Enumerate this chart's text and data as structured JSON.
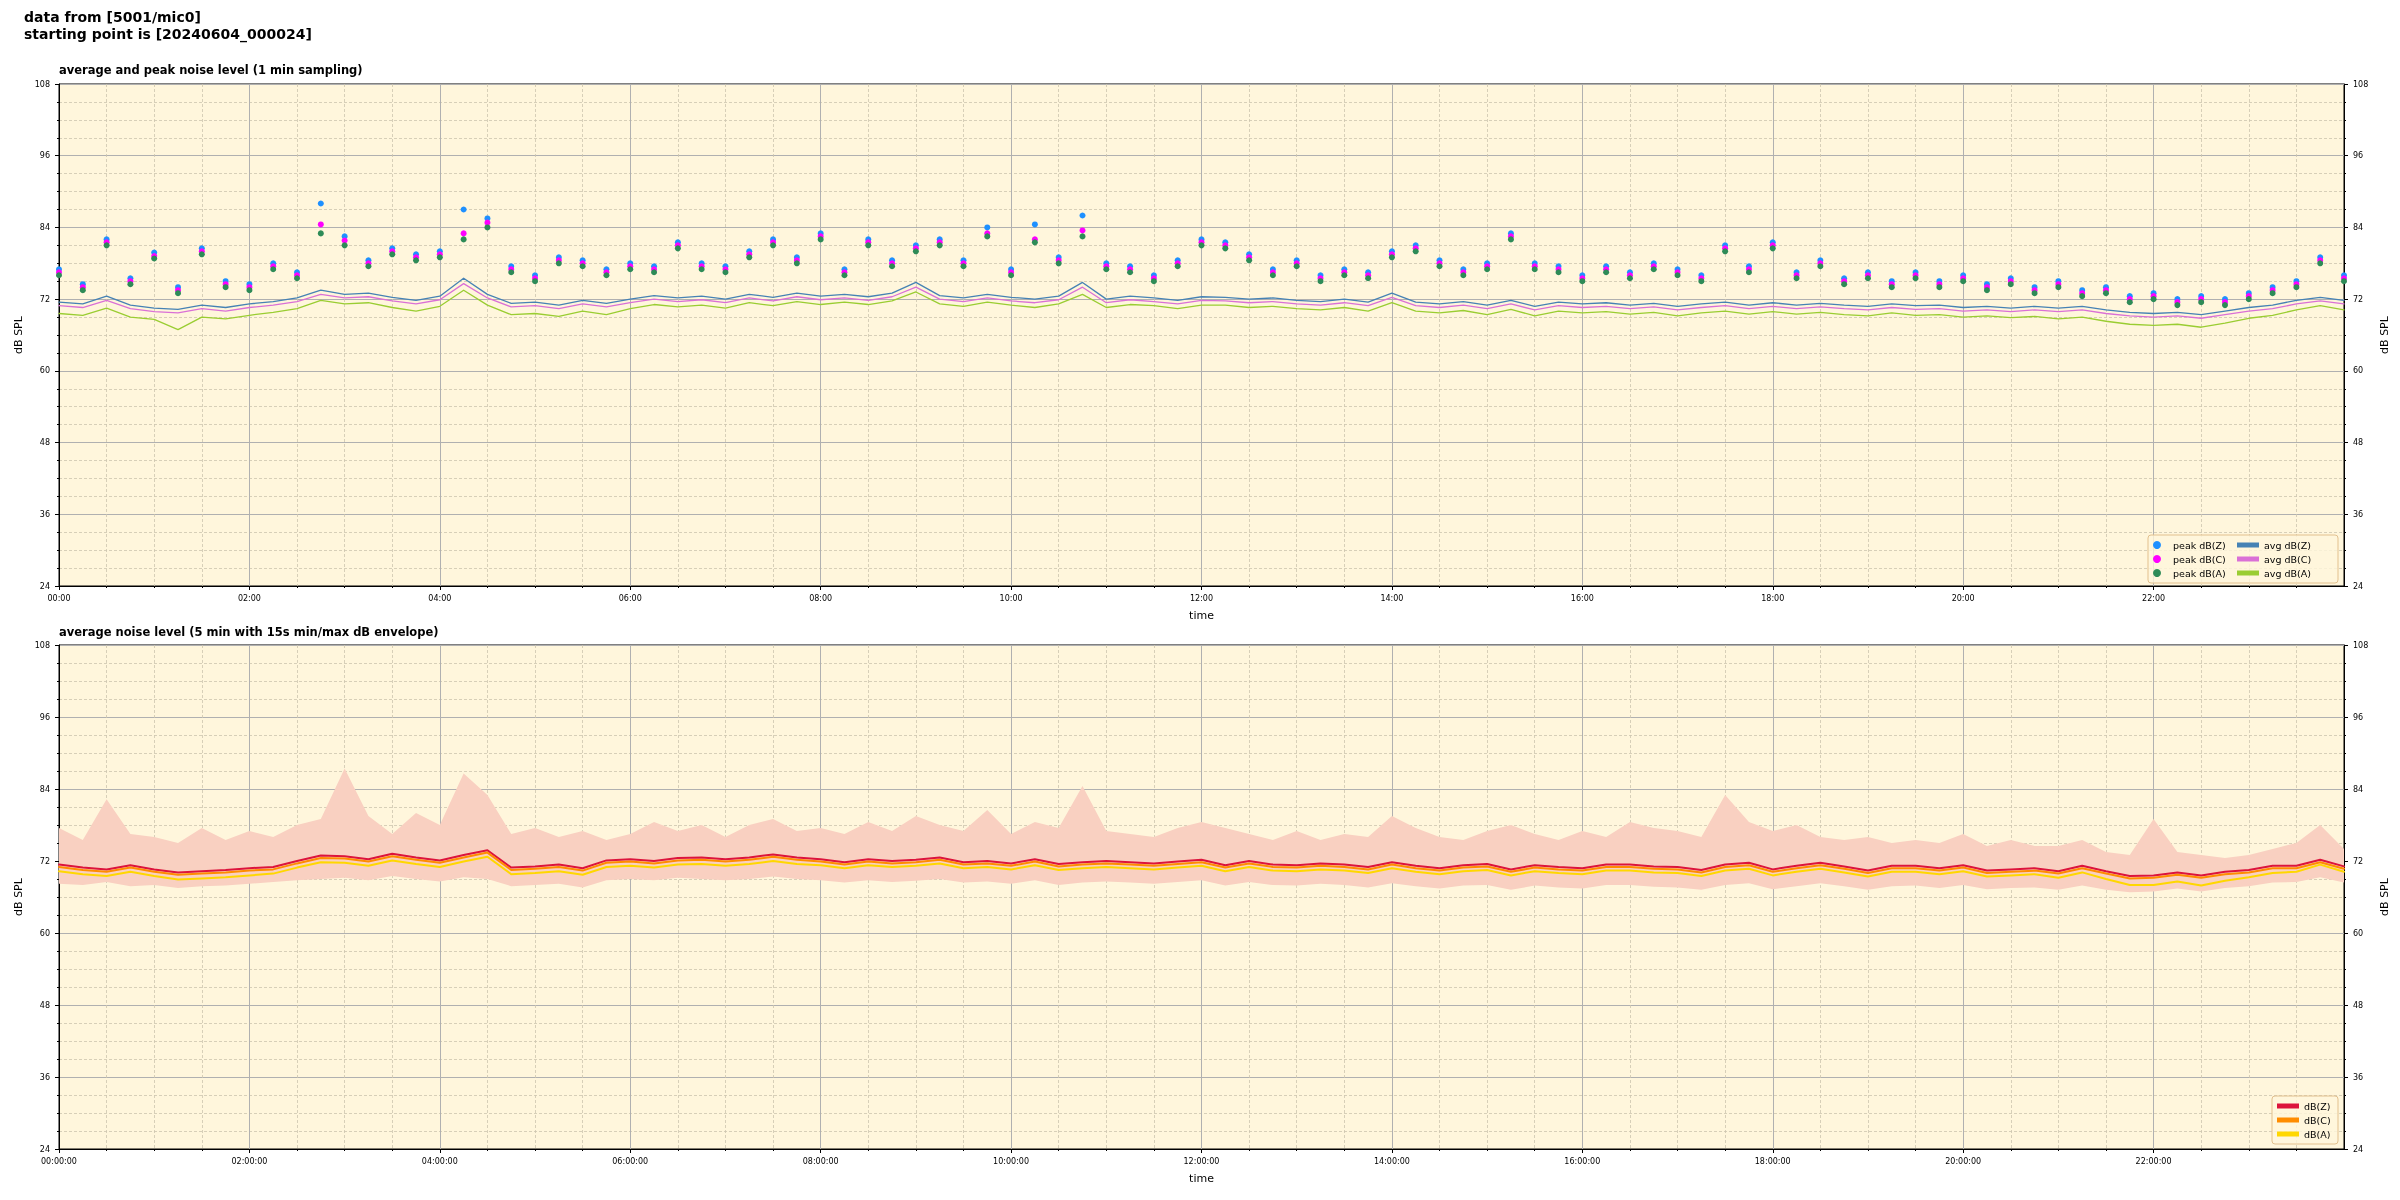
{
  "chart_data": [
    {
      "type": "line",
      "title": "average and peak noise level (1 min sampling)",
      "annotations": [
        "data from [5001/mic0]",
        "starting point is [20240604_000024]"
      ],
      "xlabel": "time",
      "ylabel": "dB SPL",
      "y2label": "dB SPL",
      "x": [
        0,
        0.25,
        0.5,
        0.75,
        1,
        1.25,
        1.5,
        1.75,
        2,
        2.25,
        2.5,
        2.75,
        3,
        3.25,
        3.5,
        3.75,
        4,
        4.25,
        4.5,
        4.75,
        5,
        5.25,
        5.5,
        5.75,
        6,
        6.25,
        6.5,
        6.75,
        7,
        7.25,
        7.5,
        7.75,
        8,
        8.25,
        8.5,
        8.75,
        9,
        9.25,
        9.5,
        9.75,
        10,
        10.25,
        10.5,
        10.75,
        11,
        11.25,
        11.5,
        11.75,
        12,
        12.25,
        12.5,
        12.75,
        13,
        13.25,
        13.5,
        13.75,
        14,
        14.25,
        14.5,
        14.75,
        15,
        15.25,
        15.5,
        15.75,
        16,
        16.25,
        16.5,
        16.75,
        17,
        17.25,
        17.5,
        17.75,
        18,
        18.25,
        18.5,
        18.75,
        19,
        19.25,
        19.5,
        19.75,
        20,
        20.25,
        20.5,
        20.75,
        21,
        21.25,
        21.5,
        21.75,
        22,
        22.25,
        22.5,
        22.75,
        23,
        23.25,
        23.5,
        23.75,
        24
      ],
      "series": [
        {
          "name": "peak dB(Z)",
          "type": "scatter",
          "marker": "circle",
          "color": "#1e90ff",
          "values": [
            77.0,
            74.5,
            82.0,
            75.5,
            79.8,
            74.0,
            80.5,
            75.0,
            74.5,
            78.0,
            76.5,
            88.0,
            82.5,
            78.5,
            80.5,
            79.5,
            80.0,
            87.0,
            85.5,
            77.5,
            76.0,
            79.0,
            78.5,
            77.0,
            78.0,
            77.5,
            81.5,
            78.0,
            77.5,
            80.0,
            82.0,
            79.0,
            83.0,
            77.0,
            82.0,
            78.5,
            81.0,
            82.0,
            78.5,
            84.0,
            77.0,
            84.5,
            79.0,
            86.0,
            78.0,
            77.5,
            76.0,
            78.5,
            82.0,
            81.5,
            79.5,
            77.0,
            78.5,
            76.0,
            77.0,
            76.5,
            80.0,
            81.0,
            78.5,
            77.0,
            78.0,
            83.0,
            78.0,
            77.5,
            76.0,
            77.5,
            76.5,
            78.0,
            77.0,
            76.0,
            81.0,
            77.5,
            81.5,
            76.5,
            78.5,
            75.5,
            76.5,
            75.0,
            76.5,
            75.0,
            76.0,
            74.5,
            75.5,
            74.0,
            75.0,
            73.5,
            74.0,
            72.5,
            73.0,
            72.0,
            72.5,
            72.0,
            73.0,
            74.0,
            75.0,
            79.0,
            76.0
          ]
        },
        {
          "name": "peak dB(C)",
          "type": "scatter",
          "marker": "circle",
          "color": "#ff00ff",
          "values": [
            76.5,
            74.0,
            81.5,
            75.0,
            79.2,
            73.5,
            80.0,
            74.5,
            74.0,
            77.5,
            76.0,
            84.5,
            81.8,
            78.0,
            80.0,
            79.0,
            79.5,
            83.0,
            84.8,
            77.0,
            75.5,
            78.5,
            78.0,
            76.5,
            77.5,
            77.0,
            81.0,
            77.5,
            77.0,
            79.5,
            81.5,
            78.5,
            82.5,
            76.5,
            81.5,
            78.0,
            80.5,
            81.5,
            78.0,
            83.0,
            76.5,
            82.0,
            78.5,
            83.5,
            77.5,
            77.0,
            75.5,
            78.0,
            81.5,
            81.0,
            79.0,
            76.5,
            78.0,
            75.5,
            76.5,
            76.0,
            79.5,
            80.5,
            78.0,
            76.5,
            77.5,
            82.5,
            77.5,
            77.0,
            75.5,
            77.0,
            76.0,
            77.5,
            76.5,
            75.5,
            80.5,
            77.0,
            81.0,
            76.0,
            78.0,
            75.0,
            76.0,
            74.5,
            76.0,
            74.5,
            75.5,
            74.0,
            75.0,
            73.5,
            74.5,
            73.0,
            73.5,
            72.0,
            72.5,
            71.5,
            72.0,
            71.5,
            72.5,
            73.5,
            74.5,
            78.5,
            75.5
          ]
        },
        {
          "name": "peak dB(A)",
          "type": "scatter",
          "marker": "circle",
          "color": "#2e8b57",
          "values": [
            76.0,
            73.5,
            81.0,
            74.5,
            78.8,
            73.0,
            79.5,
            74.0,
            73.5,
            77.0,
            75.5,
            83.0,
            81.0,
            77.5,
            79.5,
            78.5,
            79.0,
            82.0,
            84.0,
            76.5,
            75.0,
            78.0,
            77.5,
            76.0,
            77.0,
            76.5,
            80.5,
            77.0,
            76.5,
            79.0,
            81.0,
            78.0,
            82.0,
            76.0,
            81.0,
            77.5,
            80.0,
            81.0,
            77.5,
            82.5,
            76.0,
            81.5,
            78.0,
            82.5,
            77.0,
            76.5,
            75.0,
            77.5,
            81.0,
            80.5,
            78.5,
            76.0,
            77.5,
            75.0,
            76.0,
            75.5,
            79.0,
            80.0,
            77.5,
            76.0,
            77.0,
            82.0,
            77.0,
            76.5,
            75.0,
            76.5,
            75.5,
            77.0,
            76.0,
            75.0,
            80.0,
            76.5,
            80.5,
            75.5,
            77.5,
            74.5,
            75.5,
            74.0,
            75.5,
            74.0,
            75.0,
            73.5,
            74.5,
            73.0,
            74.0,
            72.5,
            73.0,
            71.5,
            72.0,
            71.0,
            71.5,
            71.0,
            72.0,
            73.0,
            74.0,
            78.0,
            75.0
          ]
        },
        {
          "name": "avg dB(Z)",
          "color": "#4682b4",
          "values": [
            71.5,
            71.2,
            72.5,
            71.0,
            70.5,
            70.3,
            71.0,
            70.6,
            71.2,
            71.6,
            72.2,
            73.5,
            72.8,
            73.0,
            72.3,
            71.8,
            72.5,
            75.5,
            72.8,
            71.3,
            71.5,
            71.0,
            71.8,
            71.3,
            72.0,
            72.6,
            72.2,
            72.5,
            72.0,
            72.8,
            72.3,
            73.0,
            72.5,
            72.8,
            72.4,
            73.0,
            74.8,
            72.6,
            72.2,
            72.8,
            72.3,
            72.0,
            72.5,
            74.8,
            72.0,
            72.5,
            72.2,
            71.8,
            72.4,
            72.3,
            72.0,
            72.2,
            71.8,
            71.6,
            72.0,
            71.5,
            73.0,
            71.5,
            71.2,
            71.6,
            71.0,
            71.8,
            70.8,
            71.5,
            71.2,
            71.4,
            71.0,
            71.3,
            70.8,
            71.2,
            71.5,
            71.0,
            71.4,
            71.0,
            71.3,
            71.0,
            70.8,
            71.2,
            70.9,
            71.0,
            70.6,
            70.8,
            70.5,
            70.8,
            70.5,
            70.8,
            70.2,
            69.8,
            69.6,
            69.8,
            69.4,
            70.0,
            70.6,
            71.0,
            71.8,
            72.3,
            71.8
          ]
        },
        {
          "name": "avg dB(C)",
          "color": "#da70d6",
          "values": [
            70.9,
            70.6,
            71.8,
            70.4,
            69.9,
            69.7,
            70.4,
            70.0,
            70.6,
            71.0,
            71.6,
            72.8,
            72.2,
            72.4,
            71.7,
            71.2,
            71.9,
            74.6,
            72.2,
            70.7,
            70.9,
            70.4,
            71.2,
            70.7,
            71.4,
            72.0,
            71.6,
            71.9,
            71.4,
            72.2,
            71.7,
            72.4,
            71.9,
            72.2,
            71.8,
            72.4,
            74.0,
            72.0,
            71.6,
            72.2,
            71.7,
            71.4,
            71.9,
            74.0,
            71.4,
            71.9,
            71.6,
            71.2,
            71.8,
            71.7,
            71.4,
            71.6,
            71.2,
            71.0,
            71.4,
            70.9,
            72.3,
            70.9,
            70.6,
            71.0,
            70.4,
            71.2,
            70.2,
            70.9,
            70.6,
            70.8,
            70.4,
            70.7,
            70.2,
            70.6,
            70.9,
            70.4,
            70.8,
            70.4,
            70.7,
            70.4,
            70.2,
            70.6,
            70.3,
            70.4,
            70.0,
            70.2,
            69.9,
            70.2,
            69.9,
            70.2,
            69.6,
            69.2,
            69.0,
            69.2,
            68.8,
            69.4,
            70.0,
            70.4,
            71.2,
            71.7,
            71.2
          ]
        },
        {
          "name": "avg dB(A)",
          "color": "#9acd32",
          "values": [
            69.6,
            69.3,
            70.5,
            69.0,
            68.6,
            66.9,
            69.0,
            68.7,
            69.3,
            69.8,
            70.4,
            71.8,
            71.2,
            71.4,
            70.6,
            70.0,
            70.8,
            73.5,
            71.0,
            69.4,
            69.6,
            69.1,
            70.0,
            69.4,
            70.4,
            71.1,
            70.7,
            71.0,
            70.5,
            71.4,
            70.9,
            71.6,
            71.1,
            71.5,
            71.1,
            71.7,
            73.2,
            71.2,
            70.8,
            71.5,
            71.0,
            70.6,
            71.2,
            72.8,
            70.6,
            71.1,
            70.9,
            70.4,
            71.0,
            71.0,
            70.6,
            70.8,
            70.4,
            70.2,
            70.6,
            70.0,
            71.4,
            70.0,
            69.7,
            70.1,
            69.4,
            70.3,
            69.2,
            70.0,
            69.7,
            69.9,
            69.5,
            69.8,
            69.2,
            69.7,
            70.0,
            69.5,
            69.9,
            69.5,
            69.8,
            69.4,
            69.2,
            69.7,
            69.3,
            69.4,
            69.0,
            69.2,
            68.9,
            69.1,
            68.7,
            69.0,
            68.3,
            67.8,
            67.6,
            67.8,
            67.3,
            68.0,
            68.8,
            69.3,
            70.2,
            70.9,
            70.2
          ]
        }
      ],
      "xlim": [
        0,
        24
      ],
      "xticks": [
        {
          "value": 0,
          "label": "00:00"
        },
        {
          "value": 0.5,
          "label": null
        },
        {
          "value": 1,
          "label": null
        },
        {
          "value": 1.5,
          "label": null
        },
        {
          "value": 2,
          "label": "02:00"
        },
        {
          "value": 2.5,
          "label": null
        },
        {
          "value": 3,
          "label": null
        },
        {
          "value": 3.5,
          "label": null
        },
        {
          "value": 4,
          "label": "04:00"
        },
        {
          "value": 4.5,
          "label": null
        },
        {
          "value": 5,
          "label": null
        },
        {
          "value": 5.5,
          "label": null
        },
        {
          "value": 6,
          "label": "06:00"
        },
        {
          "value": 6.5,
          "label": null
        },
        {
          "value": 7,
          "label": null
        },
        {
          "value": 7.5,
          "label": null
        },
        {
          "value": 8,
          "label": "08:00"
        },
        {
          "value": 8.5,
          "label": null
        },
        {
          "value": 9,
          "label": null
        },
        {
          "value": 9.5,
          "label": null
        },
        {
          "value": 10,
          "label": "10:00"
        },
        {
          "value": 10.5,
          "label": null
        },
        {
          "value": 11,
          "label": null
        },
        {
          "value": 11.5,
          "label": null
        },
        {
          "value": 12,
          "label": "12:00"
        },
        {
          "value": 12.5,
          "label": null
        },
        {
          "value": 13,
          "label": null
        },
        {
          "value": 13.5,
          "label": null
        },
        {
          "value": 14,
          "label": "14:00"
        },
        {
          "value": 14.5,
          "label": null
        },
        {
          "value": 15,
          "label": null
        },
        {
          "value": 15.5,
          "label": null
        },
        {
          "value": 16,
          "label": "16:00"
        },
        {
          "value": 16.5,
          "label": null
        },
        {
          "value": 17,
          "label": null
        },
        {
          "value": 17.5,
          "label": null
        },
        {
          "value": 18,
          "label": "18:00"
        },
        {
          "value": 18.5,
          "label": null
        },
        {
          "value": 19,
          "label": null
        },
        {
          "value": 19.5,
          "label": null
        },
        {
          "value": 20,
          "label": "20:00"
        },
        {
          "value": 20.5,
          "label": null
        },
        {
          "value": 21,
          "label": null
        },
        {
          "value": 21.5,
          "label": null
        },
        {
          "value": 22,
          "label": "22:00"
        },
        {
          "value": 22.5,
          "label": null
        },
        {
          "value": 23,
          "label": null
        },
        {
          "value": 23.5,
          "label": null
        }
      ],
      "ylim": [
        24,
        108
      ],
      "yticks": [
        24,
        {
          "value": 27,
          "label": null
        },
        {
          "value": 30,
          "label": null
        },
        {
          "value": 33,
          "label": null
        },
        36,
        {
          "value": 39,
          "label": null
        },
        {
          "value": 42,
          "label": null
        },
        {
          "value": 45,
          "label": null
        },
        48,
        {
          "value": 51,
          "label": null
        },
        {
          "value": 54,
          "label": null
        },
        {
          "value": 57,
          "label": null
        },
        60,
        {
          "value": 63,
          "label": null
        },
        {
          "value": 66,
          "label": null
        },
        {
          "value": 69,
          "label": null
        },
        72,
        {
          "value": 75,
          "label": null
        },
        {
          "value": 78,
          "label": null
        },
        {
          "value": 81,
          "label": null
        },
        84,
        {
          "value": 87,
          "label": null
        },
        {
          "value": 90,
          "label": null
        },
        {
          "value": 93,
          "label": null
        },
        96,
        {
          "value": 99,
          "label": null
        },
        {
          "value": 102,
          "label": null
        },
        {
          "value": 105,
          "label": null
        },
        108
      ],
      "y2lim": [
        24,
        108
      ],
      "y2ticks": [
        24,
        {
          "value": 27,
          "label": null
        },
        {
          "value": 30,
          "label": null
        },
        {
          "value": 33,
          "label": null
        },
        36,
        {
          "value": 39,
          "label": null
        },
        {
          "value": 42,
          "label": null
        },
        {
          "value": 45,
          "label": null
        },
        48,
        {
          "value": 51,
          "label": null
        },
        {
          "value": 54,
          "label": null
        },
        {
          "value": 57,
          "label": null
        },
        60,
        {
          "value": 63,
          "label": null
        },
        {
          "value": 66,
          "label": null
        },
        {
          "value": 69,
          "label": null
        },
        72,
        {
          "value": 75,
          "label": null
        },
        {
          "value": 78,
          "label": null
        },
        {
          "value": 81,
          "label": null
        },
        84,
        {
          "value": 87,
          "label": null
        },
        {
          "value": 90,
          "label": null
        },
        {
          "value": 93,
          "label": null
        },
        96,
        {
          "value": 99,
          "label": null
        },
        {
          "value": 102,
          "label": null
        },
        {
          "value": 105,
          "label": null
        },
        108
      ],
      "grid": true,
      "legend": "bottom right"
    },
    {
      "type": "line",
      "title": "average noise level (5 min with 15s min/max dB envelope)",
      "xlabel": "time",
      "ylabel": "dB SPL",
      "y2label": "dB SPL",
      "x": [
        0,
        0.25,
        0.5,
        0.75,
        1,
        1.25,
        1.5,
        1.75,
        2,
        2.25,
        2.5,
        2.75,
        3,
        3.25,
        3.5,
        3.75,
        4,
        4.25,
        4.5,
        4.75,
        5,
        5.25,
        5.5,
        5.75,
        6,
        6.25,
        6.5,
        6.75,
        7,
        7.25,
        7.5,
        7.75,
        8,
        8.25,
        8.5,
        8.75,
        9,
        9.25,
        9.5,
        9.75,
        10,
        10.25,
        10.5,
        10.75,
        11,
        11.25,
        11.5,
        11.75,
        12,
        12.25,
        12.5,
        12.75,
        13,
        13.25,
        13.5,
        13.75,
        14,
        14.25,
        14.5,
        14.75,
        15,
        15.25,
        15.5,
        15.75,
        16,
        16.25,
        16.5,
        16.75,
        17,
        17.25,
        17.5,
        17.75,
        18,
        18.25,
        18.5,
        18.75,
        19,
        19.25,
        19.5,
        19.75,
        20,
        20.25,
        20.5,
        20.75,
        21,
        21.25,
        21.5,
        21.75,
        22,
        22.25,
        22.5,
        22.75,
        23,
        23.25,
        23.5,
        23.75,
        24
      ],
      "series": [
        {
          "name": "dB(Z)",
          "color": "#dc143c",
          "values": [
            71.4,
            70.9,
            70.6,
            71.3,
            70.6,
            70.1,
            70.3,
            70.5,
            70.8,
            71.0,
            72.0,
            72.9,
            72.8,
            72.3,
            73.2,
            72.6,
            72.1,
            73.0,
            73.8,
            70.9,
            71.1,
            71.4,
            70.8,
            72.1,
            72.3,
            72.0,
            72.5,
            72.6,
            72.3,
            72.6,
            73.1,
            72.6,
            72.3,
            71.8,
            72.3,
            72.0,
            72.2,
            72.6,
            71.8,
            72.0,
            71.6,
            72.3,
            71.5,
            71.8,
            72.0,
            71.8,
            71.6,
            71.9,
            72.2,
            71.3,
            72.0,
            71.4,
            71.3,
            71.6,
            71.4,
            71.0,
            71.8,
            71.2,
            70.8,
            71.3,
            71.5,
            70.6,
            71.3,
            71.0,
            70.8,
            71.4,
            71.4,
            71.1,
            71.0,
            70.5,
            71.4,
            71.7,
            70.6,
            71.2,
            71.7,
            71.1,
            70.4,
            71.2,
            71.2,
            70.8,
            71.3,
            70.4,
            70.6,
            70.8,
            70.3,
            71.2,
            70.3,
            69.5,
            69.6,
            70.1,
            69.6,
            70.2,
            70.5,
            71.2,
            71.2,
            72.2,
            71.1
          ],
          "lower": [
            68.2,
            68.0,
            68.5,
            67.8,
            68.0,
            67.5,
            67.8,
            67.9,
            68.2,
            68.5,
            68.8,
            69.0,
            69.2,
            68.8,
            69.5,
            69.0,
            68.6,
            69.3,
            69.0,
            67.8,
            68.0,
            68.2,
            67.6,
            68.8,
            69.0,
            68.8,
            69.2,
            69.0,
            68.8,
            69.0,
            69.4,
            69.0,
            68.8,
            68.4,
            68.8,
            68.5,
            68.7,
            69.0,
            68.4,
            68.6,
            68.2,
            68.8,
            68.0,
            68.4,
            68.6,
            68.4,
            68.2,
            68.5,
            68.8,
            67.9,
            68.5,
            68.0,
            67.9,
            68.2,
            68.0,
            67.6,
            68.3,
            67.8,
            67.4,
            67.9,
            68.0,
            67.2,
            67.9,
            67.6,
            67.4,
            68.0,
            68.0,
            67.7,
            67.6,
            67.2,
            68.0,
            68.3,
            67.3,
            67.8,
            68.3,
            67.8,
            67.2,
            67.8,
            67.9,
            67.5,
            68.0,
            67.3,
            67.5,
            67.6,
            67.2,
            67.9,
            67.2,
            66.8,
            66.9,
            67.4,
            66.9,
            67.5,
            67.8,
            68.4,
            68.5,
            69.3,
            68.4
          ],
          "upper": [
            77.5,
            75.5,
            82.3,
            76.5,
            76.0,
            75.0,
            77.5,
            75.5,
            77.0,
            76.0,
            78.0,
            79.0,
            87.4,
            79.5,
            76.5,
            80.0,
            78.0,
            86.6,
            83.0,
            76.5,
            77.5,
            76.0,
            77.0,
            75.5,
            76.5,
            78.5,
            77.0,
            78.0,
            76.0,
            78.0,
            79.0,
            77.0,
            77.5,
            76.5,
            78.5,
            77.0,
            79.5,
            78.0,
            77.0,
            80.5,
            76.5,
            78.5,
            77.5,
            84.5,
            77.0,
            76.5,
            76.0,
            77.5,
            78.5,
            77.5,
            76.5,
            75.5,
            77.0,
            75.5,
            76.5,
            76.0,
            79.5,
            77.5,
            76.0,
            75.5,
            77.0,
            78.0,
            76.5,
            75.5,
            77.0,
            76.0,
            78.5,
            77.5,
            77.0,
            76.0,
            83.0,
            78.5,
            77.0,
            78.0,
            76.0,
            75.5,
            76.0,
            75.0,
            75.5,
            75.0,
            76.5,
            74.5,
            75.5,
            74.5,
            74.5,
            75.5,
            73.5,
            73.0,
            79.0,
            73.5,
            73.0,
            72.5,
            73.0,
            74.0,
            75.0,
            78.0,
            74.0
          ]
        },
        {
          "name": "dB(C)",
          "color": "#ff8c00",
          "values": [
            71.0,
            70.5,
            70.2,
            70.9,
            70.2,
            69.7,
            69.9,
            70.1,
            70.4,
            70.6,
            71.6,
            72.5,
            72.4,
            71.9,
            72.8,
            72.2,
            71.7,
            72.6,
            73.4,
            70.5,
            70.7,
            71.0,
            70.4,
            71.7,
            71.9,
            71.6,
            72.1,
            72.2,
            71.9,
            72.2,
            72.7,
            72.2,
            71.9,
            71.4,
            71.9,
            71.6,
            71.8,
            72.2,
            71.4,
            71.6,
            71.2,
            71.9,
            71.1,
            71.4,
            71.6,
            71.4,
            71.2,
            71.5,
            71.8,
            70.9,
            71.6,
            71.0,
            70.9,
            71.2,
            71.0,
            70.6,
            71.4,
            70.8,
            70.4,
            70.9,
            71.1,
            70.2,
            70.9,
            70.6,
            70.4,
            71.0,
            71.0,
            70.7,
            70.6,
            70.1,
            71.0,
            71.3,
            70.2,
            70.8,
            71.3,
            70.7,
            70.0,
            70.8,
            70.8,
            70.4,
            70.9,
            70.0,
            70.2,
            70.4,
            69.9,
            70.8,
            69.9,
            69.1,
            69.2,
            69.7,
            69.2,
            69.8,
            70.1,
            70.8,
            70.8,
            71.8,
            70.7
          ]
        },
        {
          "name": "dB(A)",
          "color": "#ffd700",
          "values": [
            70.3,
            69.8,
            69.5,
            70.2,
            69.5,
            68.9,
            69.1,
            69.3,
            69.6,
            69.9,
            70.9,
            71.8,
            71.7,
            71.2,
            72.1,
            71.5,
            71.0,
            71.9,
            72.7,
            69.8,
            70.0,
            70.3,
            69.7,
            71.0,
            71.2,
            70.9,
            71.4,
            71.5,
            71.2,
            71.5,
            72.0,
            71.5,
            71.3,
            70.8,
            71.3,
            71.0,
            71.2,
            71.6,
            70.8,
            71.0,
            70.6,
            71.3,
            70.5,
            70.8,
            71.0,
            70.8,
            70.6,
            70.9,
            71.2,
            70.3,
            71.0,
            70.4,
            70.3,
            70.6,
            70.4,
            70.0,
            70.8,
            70.2,
            69.8,
            70.3,
            70.5,
            69.6,
            70.3,
            70.0,
            69.8,
            70.4,
            70.4,
            70.1,
            70.0,
            69.5,
            70.4,
            70.7,
            69.6,
            70.2,
            70.7,
            70.1,
            69.4,
            70.2,
            70.2,
            69.8,
            70.3,
            69.4,
            69.6,
            69.8,
            69.2,
            70.1,
            69.0,
            68.0,
            68.0,
            68.6,
            67.9,
            68.7,
            69.3,
            70.0,
            70.2,
            71.4,
            70.2
          ]
        }
      ],
      "xlim": [
        0,
        24
      ],
      "xticks": [
        {
          "value": 0,
          "label": "00:00:00"
        },
        {
          "value": 0.5,
          "label": null
        },
        {
          "value": 1,
          "label": null
        },
        {
          "value": 1.5,
          "label": null
        },
        {
          "value": 2,
          "label": "02:00:00"
        },
        {
          "value": 2.5,
          "label": null
        },
        {
          "value": 3,
          "label": null
        },
        {
          "value": 3.5,
          "label": null
        },
        {
          "value": 4,
          "label": "04:00:00"
        },
        {
          "value": 4.5,
          "label": null
        },
        {
          "value": 5,
          "label": null
        },
        {
          "value": 5.5,
          "label": null
        },
        {
          "value": 6,
          "label": "06:00:00"
        },
        {
          "value": 6.5,
          "label": null
        },
        {
          "value": 7,
          "label": null
        },
        {
          "value": 7.5,
          "label": null
        },
        {
          "value": 8,
          "label": "08:00:00"
        },
        {
          "value": 8.5,
          "label": null
        },
        {
          "value": 9,
          "label": null
        },
        {
          "value": 9.5,
          "label": null
        },
        {
          "value": 10,
          "label": "10:00:00"
        },
        {
          "value": 10.5,
          "label": null
        },
        {
          "value": 11,
          "label": null
        },
        {
          "value": 11.5,
          "label": null
        },
        {
          "value": 12,
          "label": "12:00:00"
        },
        {
          "value": 12.5,
          "label": null
        },
        {
          "value": 13,
          "label": null
        },
        {
          "value": 13.5,
          "label": null
        },
        {
          "value": 14,
          "label": "14:00:00"
        },
        {
          "value": 14.5,
          "label": null
        },
        {
          "value": 15,
          "label": null
        },
        {
          "value": 15.5,
          "label": null
        },
        {
          "value": 16,
          "label": "16:00:00"
        },
        {
          "value": 16.5,
          "label": null
        },
        {
          "value": 17,
          "label": null
        },
        {
          "value": 17.5,
          "label": null
        },
        {
          "value": 18,
          "label": "18:00:00"
        },
        {
          "value": 18.5,
          "label": null
        },
        {
          "value": 19,
          "label": null
        },
        {
          "value": 19.5,
          "label": null
        },
        {
          "value": 20,
          "label": "20:00:00"
        },
        {
          "value": 20.5,
          "label": null
        },
        {
          "value": 21,
          "label": null
        },
        {
          "value": 21.5,
          "label": null
        },
        {
          "value": 22,
          "label": "22:00:00"
        },
        {
          "value": 22.5,
          "label": null
        },
        {
          "value": 23,
          "label": null
        },
        {
          "value": 23.5,
          "label": null
        }
      ],
      "ylim": [
        24,
        108
      ],
      "yticks": [
        24,
        {
          "value": 27,
          "label": null
        },
        {
          "value": 30,
          "label": null
        },
        {
          "value": 33,
          "label": null
        },
        36,
        {
          "value": 39,
          "label": null
        },
        {
          "value": 42,
          "label": null
        },
        {
          "value": 45,
          "label": null
        },
        48,
        {
          "value": 51,
          "label": null
        },
        {
          "value": 54,
          "label": null
        },
        {
          "value": 57,
          "label": null
        },
        60,
        {
          "value": 63,
          "label": null
        },
        {
          "value": 66,
          "label": null
        },
        {
          "value": 69,
          "label": null
        },
        72,
        {
          "value": 75,
          "label": null
        },
        {
          "value": 78,
          "label": null
        },
        {
          "value": 81,
          "label": null
        },
        84,
        {
          "value": 87,
          "label": null
        },
        {
          "value": 90,
          "label": null
        },
        {
          "value": 93,
          "label": null
        },
        96,
        {
          "value": 99,
          "label": null
        },
        {
          "value": 102,
          "label": null
        },
        {
          "value": 105,
          "label": null
        },
        108
      ],
      "y2lim": [
        24,
        108
      ],
      "y2ticks": [
        24,
        {
          "value": 27,
          "label": null
        },
        {
          "value": 30,
          "label": null
        },
        {
          "value": 33,
          "label": null
        },
        36,
        {
          "value": 39,
          "label": null
        },
        {
          "value": 42,
          "label": null
        },
        {
          "value": 45,
          "label": null
        },
        48,
        {
          "value": 51,
          "label": null
        },
        {
          "value": 54,
          "label": null
        },
        {
          "value": 57,
          "label": null
        },
        60,
        {
          "value": 63,
          "label": null
        },
        {
          "value": 66,
          "label": null
        },
        {
          "value": 69,
          "label": null
        },
        72,
        {
          "value": 75,
          "label": null
        },
        {
          "value": 78,
          "label": null
        },
        {
          "value": 81,
          "label": null
        },
        84,
        {
          "value": 87,
          "label": null
        },
        {
          "value": 90,
          "label": null
        },
        {
          "value": 93,
          "label": null
        },
        96,
        {
          "value": 99,
          "label": null
        },
        {
          "value": 102,
          "label": null
        },
        {
          "value": 105,
          "label": null
        },
        108
      ],
      "grid": true,
      "legend": "bottom right"
    }
  ]
}
